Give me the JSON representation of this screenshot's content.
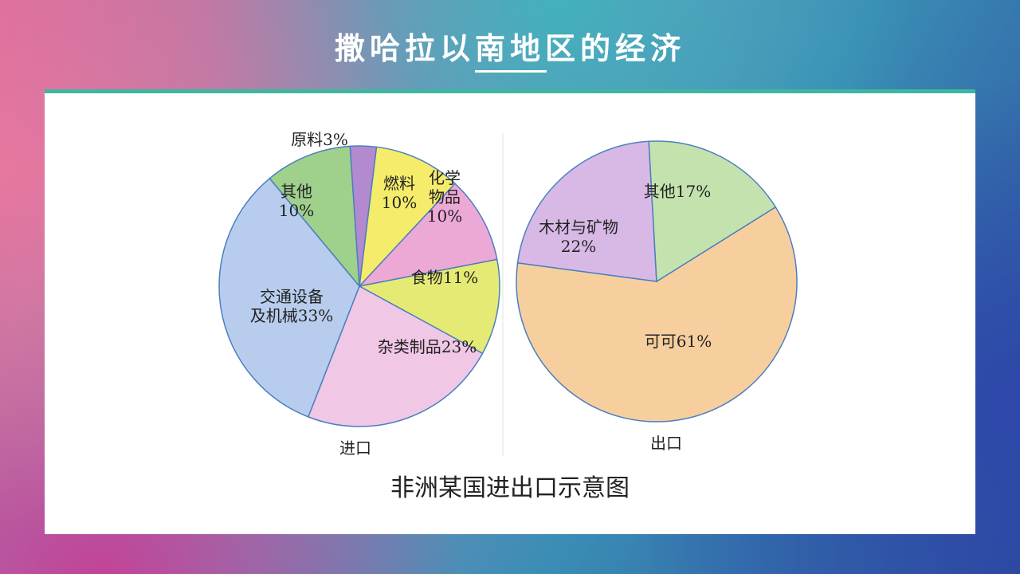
{
  "title": "撒哈拉以南地区的经济",
  "caption": "非洲某国进出口示意图",
  "chart_data": [
    {
      "type": "pie",
      "title": "进口",
      "slices": [
        {
          "label": "燃料",
          "value": 10,
          "color": "#f4ec6a"
        },
        {
          "label": "化学物品",
          "value": 10,
          "color": "#eda9d6"
        },
        {
          "label": "食物",
          "value": 11,
          "color": "#e5ea74"
        },
        {
          "label": "杂类制品",
          "value": 23,
          "color": "#f1c7e6"
        },
        {
          "label": "交通设备及机械",
          "value": 33,
          "color": "#b8cdee"
        },
        {
          "label": "其他",
          "value": 10,
          "color": "#9fd08c"
        },
        {
          "label": "原料",
          "value": 3,
          "color": "#b38ad0"
        }
      ],
      "label_text": [
        [
          "燃料",
          "10%"
        ],
        [
          "化学",
          "物品",
          "10%"
        ],
        [
          "食物11%"
        ],
        [
          "杂类制品23%"
        ],
        [
          "交通设备",
          "及机械33%"
        ],
        [
          "其他",
          "10%"
        ],
        [
          "原料3%"
        ]
      ]
    },
    {
      "type": "pie",
      "title": "出口",
      "slices": [
        {
          "label": "可可",
          "value": 61,
          "color": "#f7cf9e"
        },
        {
          "label": "木材与矿物",
          "value": 22,
          "color": "#d8b9e6"
        },
        {
          "label": "其他",
          "value": 17,
          "color": "#c4e2ad"
        }
      ],
      "label_text": [
        [
          "可可61%"
        ],
        [
          "木材与矿物",
          "22%"
        ],
        [
          "其他17%"
        ]
      ]
    }
  ]
}
